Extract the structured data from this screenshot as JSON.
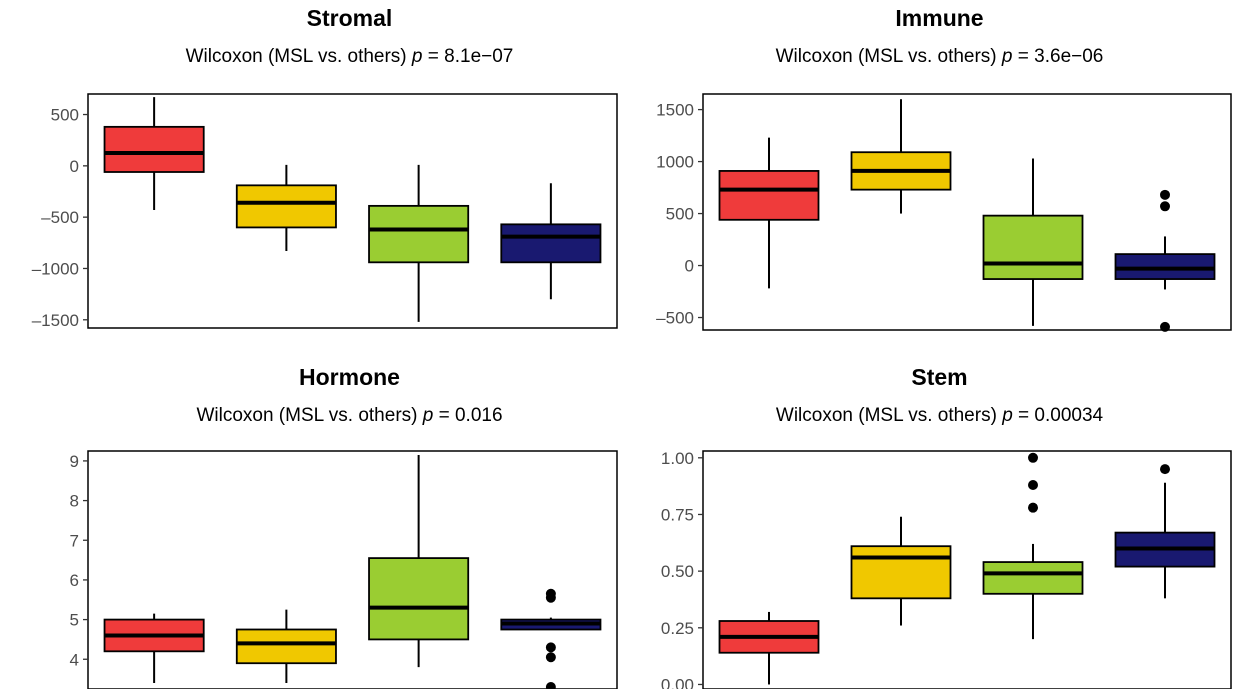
{
  "chart_data": [
    {
      "type": "boxplot",
      "title": "Stromal",
      "subtitle_prefix": "Wilcoxon (MSL vs. others)",
      "p_symbol": "p",
      "p_value": "= 8.1e−07",
      "ylim": [
        -1580,
        700
      ],
      "yticks": [
        500,
        0,
        -500,
        -1000,
        -1500
      ],
      "ytick_labels": [
        "500",
        "0",
        "–500",
        "–1000",
        "–1500"
      ],
      "boxes": [
        {
          "color": "#ef3b3b",
          "min": -430,
          "q1": -60,
          "median": 125,
          "q3": 380,
          "max": 670,
          "outliers": []
        },
        {
          "color": "#f0c800",
          "min": -830,
          "q1": -600,
          "median": -360,
          "q3": -190,
          "max": 10,
          "outliers": []
        },
        {
          "color": "#9acd32",
          "min": -1520,
          "q1": -940,
          "median": -620,
          "q3": -390,
          "max": 10,
          "outliers": []
        },
        {
          "color": "#191970",
          "min": -1300,
          "q1": -940,
          "median": -690,
          "q3": -570,
          "max": -170,
          "outliers": []
        }
      ]
    },
    {
      "type": "boxplot",
      "title": "Immune",
      "subtitle_prefix": "Wilcoxon (MSL vs. others)",
      "p_symbol": "p",
      "p_value": "= 3.6e−06",
      "ylim": [
        -620,
        1650
      ],
      "yticks": [
        1500,
        1000,
        500,
        0,
        -500
      ],
      "ytick_labels": [
        "1500",
        "1000",
        "500",
        "0",
        "–500"
      ],
      "boxes": [
        {
          "color": "#ef3b3b",
          "min": -220,
          "q1": 440,
          "median": 730,
          "q3": 910,
          "max": 1230,
          "outliers": []
        },
        {
          "color": "#f0c800",
          "min": 500,
          "q1": 730,
          "median": 910,
          "q3": 1090,
          "max": 1600,
          "outliers": []
        },
        {
          "color": "#9acd32",
          "min": -580,
          "q1": -130,
          "median": 20,
          "q3": 480,
          "max": 1030,
          "outliers": []
        },
        {
          "color": "#191970",
          "min": -230,
          "q1": -130,
          "median": -30,
          "q3": 110,
          "max": 280,
          "outliers": [
            680,
            570,
            -590
          ]
        }
      ]
    },
    {
      "type": "boxplot",
      "title": "Hormone",
      "subtitle_prefix": "Wilcoxon (MSL vs. others)",
      "p_symbol": "p",
      "p_value": "= 0.016",
      "ylim": [
        3.25,
        9.25
      ],
      "yticks": [
        9,
        8,
        7,
        6,
        5,
        4
      ],
      "ytick_labels": [
        "9",
        "8",
        "7",
        "6",
        "5",
        "4"
      ],
      "boxes": [
        {
          "color": "#ef3b3b",
          "min": 3.4,
          "q1": 4.2,
          "median": 4.6,
          "q3": 5.0,
          "max": 5.15,
          "outliers": []
        },
        {
          "color": "#f0c800",
          "min": 3.4,
          "q1": 3.9,
          "median": 4.4,
          "q3": 4.75,
          "max": 5.25,
          "outliers": []
        },
        {
          "color": "#9acd32",
          "min": 3.8,
          "q1": 4.5,
          "median": 5.3,
          "q3": 6.55,
          "max": 9.15,
          "outliers": []
        },
        {
          "color": "#191970",
          "min": 4.75,
          "q1": 4.75,
          "median": 4.9,
          "q3": 5.0,
          "max": 5.05,
          "outliers": [
            5.65,
            5.55,
            4.3,
            4.05,
            3.3
          ]
        }
      ]
    },
    {
      "type": "boxplot",
      "title": "Stem",
      "subtitle_prefix": "Wilcoxon (MSL vs. others)",
      "p_symbol": "p",
      "p_value": "= 0.00034",
      "ylim": [
        -0.02,
        1.03
      ],
      "yticks": [
        1.0,
        0.75,
        0.5,
        0.25,
        0.0
      ],
      "ytick_labels": [
        "1.00",
        "0.75",
        "0.50",
        "0.25",
        "0.00"
      ],
      "boxes": [
        {
          "color": "#ef3b3b",
          "min": 0.0,
          "q1": 0.14,
          "median": 0.21,
          "q3": 0.28,
          "max": 0.32,
          "outliers": []
        },
        {
          "color": "#f0c800",
          "min": 0.26,
          "q1": 0.38,
          "median": 0.56,
          "q3": 0.61,
          "max": 0.74,
          "outliers": []
        },
        {
          "color": "#9acd32",
          "min": 0.2,
          "q1": 0.4,
          "median": 0.49,
          "q3": 0.54,
          "max": 0.62,
          "outliers": [
            1.0,
            0.88,
            0.78
          ]
        },
        {
          "color": "#191970",
          "min": 0.38,
          "q1": 0.52,
          "median": 0.6,
          "q3": 0.67,
          "max": 0.89,
          "outliers": [
            0.95
          ]
        }
      ]
    }
  ]
}
